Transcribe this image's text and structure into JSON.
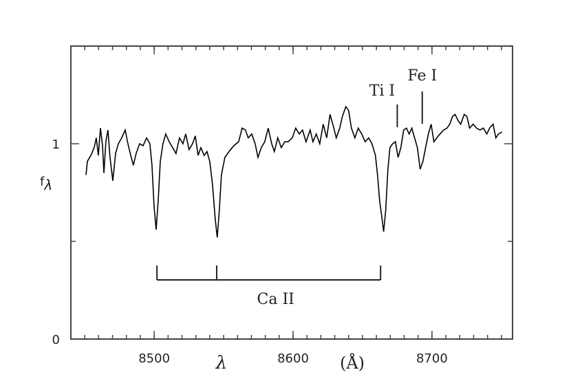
{
  "chart_data": {
    "type": "line",
    "xlabel": "λ",
    "xunit": "(Å)",
    "ylabel": "f",
    "ylabel_sub": "λ",
    "xlim": [
      8440,
      8758
    ],
    "ylim": [
      0,
      1.5
    ],
    "xticks": [
      8500,
      8600,
      8700
    ],
    "yticks": [
      0,
      1
    ],
    "yminor_ticks": [
      0.5
    ],
    "xminor_step": 10,
    "color": "#000000",
    "x": [
      8450.9,
      8451.9,
      8454.4,
      8456.8,
      8458.3,
      8459.8,
      8461.3,
      8462.8,
      8463.8,
      8465.2,
      8466.7,
      8468.2,
      8470.2,
      8472.2,
      8474.2,
      8476.6,
      8479.1,
      8481.1,
      8483.1,
      8485.0,
      8487.0,
      8489.5,
      8492.0,
      8494.5,
      8496.9,
      8498.4,
      8499.9,
      8501.4,
      8502.9,
      8504.4,
      8506.3,
      8508.3,
      8510.8,
      8513.3,
      8515.7,
      8518.2,
      8520.7,
      8522.7,
      8525.1,
      8527.6,
      8529.6,
      8531.6,
      8533.6,
      8536.0,
      8538.0,
      8540.0,
      8542.0,
      8544.0,
      8545.4,
      8546.9,
      8548.4,
      8550.9,
      8553.9,
      8557.3,
      8560.8,
      8563.3,
      8565.7,
      8567.7,
      8570.2,
      8572.7,
      8574.7,
      8577.1,
      8579.6,
      8582.1,
      8584.6,
      8586.5,
      8589.0,
      8591.5,
      8594.0,
      8596.4,
      8599.4,
      8601.9,
      8604.4,
      8606.8,
      8609.3,
      8612.3,
      8614.3,
      8616.7,
      8619.2,
      8621.7,
      8624.2,
      8626.6,
      8628.6,
      8631.1,
      8633.6,
      8635.5,
      8638.0,
      8640.0,
      8642.0,
      8644.5,
      8646.9,
      8649.4,
      8651.9,
      8654.4,
      8656.8,
      8659.3,
      8660.8,
      8662.3,
      8663.8,
      8665.2,
      8666.7,
      8668.2,
      8669.7,
      8671.7,
      8673.7,
      8675.6,
      8677.6,
      8679.6,
      8681.6,
      8683.6,
      8685.5,
      8687.5,
      8689.5,
      8691.5,
      8693.5,
      8695.4,
      8697.4,
      8699.4,
      8701.4,
      8703.4,
      8705.8,
      8708.3,
      8710.8,
      8712.8,
      8714.8,
      8716.7,
      8718.7,
      8720.7,
      8723.2,
      8725.1,
      8727.1,
      8729.6,
      8732.1,
      8734.6,
      8737.0,
      8739.5,
      8741.5,
      8744.0,
      8746.0,
      8747.9,
      8750.4
    ],
    "values": [
      0.84,
      0.91,
      0.94,
      0.98,
      1.03,
      0.94,
      1.08,
      0.99,
      0.85,
      1.01,
      1.07,
      0.93,
      0.81,
      0.95,
      1.0,
      1.03,
      1.07,
      1.0,
      0.94,
      0.89,
      0.95,
      1.0,
      0.99,
      1.03,
      1.0,
      0.89,
      0.68,
      0.56,
      0.71,
      0.91,
      1.0,
      1.05,
      1.01,
      0.98,
      0.95,
      1.03,
      1.0,
      1.05,
      0.97,
      1.0,
      1.04,
      0.94,
      0.98,
      0.94,
      0.96,
      0.91,
      0.79,
      0.61,
      0.52,
      0.66,
      0.84,
      0.93,
      0.96,
      0.99,
      1.01,
      1.08,
      1.07,
      1.03,
      1.05,
      1.0,
      0.93,
      0.98,
      1.01,
      1.08,
      1.0,
      0.96,
      1.03,
      0.98,
      1.01,
      1.01,
      1.03,
      1.08,
      1.05,
      1.07,
      1.01,
      1.07,
      1.01,
      1.05,
      1.0,
      1.1,
      1.03,
      1.15,
      1.1,
      1.03,
      1.08,
      1.14,
      1.19,
      1.17,
      1.08,
      1.03,
      1.08,
      1.05,
      1.01,
      1.03,
      1.0,
      0.94,
      0.84,
      0.71,
      0.63,
      0.55,
      0.66,
      0.86,
      0.98,
      1.0,
      1.01,
      0.93,
      0.98,
      1.07,
      1.08,
      1.05,
      1.08,
      1.03,
      0.98,
      0.87,
      0.91,
      0.98,
      1.05,
      1.1,
      1.01,
      1.03,
      1.05,
      1.07,
      1.08,
      1.1,
      1.14,
      1.15,
      1.12,
      1.1,
      1.15,
      1.14,
      1.08,
      1.1,
      1.08,
      1.07,
      1.08,
      1.05,
      1.08,
      1.1,
      1.03,
      1.05,
      1.06
    ],
    "annotations": [
      {
        "text": "Ca II",
        "x": [
          8502,
          8545,
          8663
        ]
      },
      {
        "text": "Ti I",
        "x": 8675
      },
      {
        "text": "Fe I",
        "x": 8693
      }
    ]
  }
}
